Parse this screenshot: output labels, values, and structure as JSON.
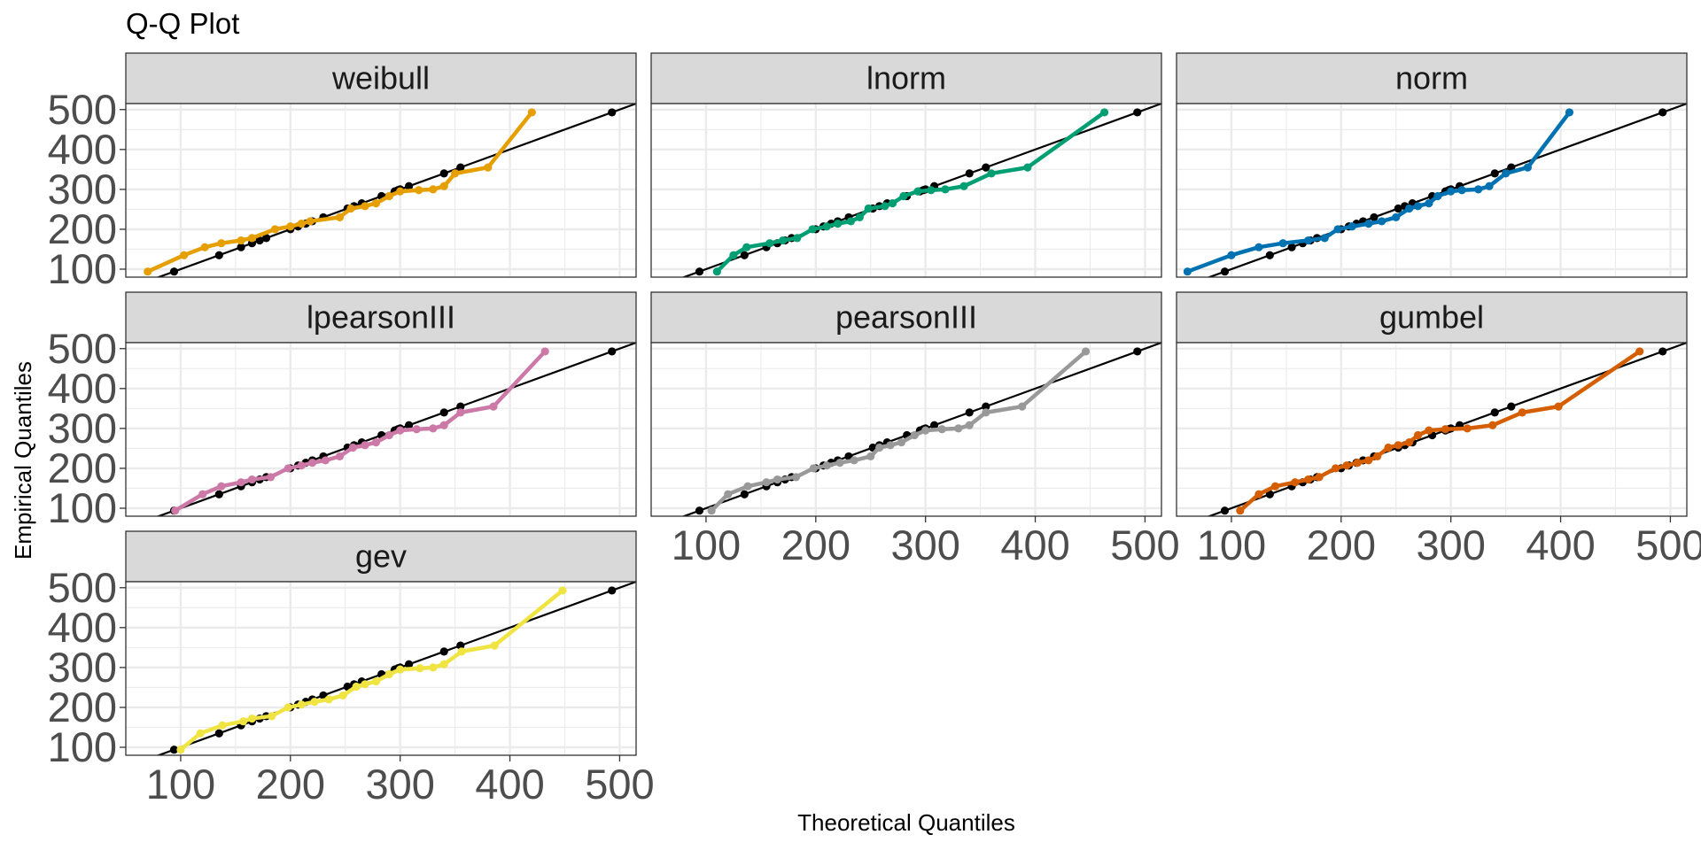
{
  "chart_data": {
    "type": "scatter",
    "title": "Q-Q Plot",
    "xlabel": "Theoretical Quantiles",
    "ylabel": "Empirical Quantiles",
    "xlim": [
      50,
      515
    ],
    "ylim": [
      80,
      515
    ],
    "x_ticks": [
      100,
      200,
      300,
      400,
      500
    ],
    "y_ticks": [
      100,
      200,
      300,
      400,
      500
    ],
    "grid": true,
    "reference_line": "y = x",
    "observed": [
      94,
      135,
      155,
      165,
      172,
      178,
      200,
      207,
      214,
      220,
      230,
      252,
      258,
      265,
      283,
      295,
      298,
      300,
      308,
      340,
      355,
      493
    ],
    "panels": [
      {
        "name": "weibull",
        "color": "#E69F00",
        "theoretical": [
          70,
          103,
          122,
          137,
          155,
          165,
          186,
          200,
          210,
          218,
          245,
          255,
          268,
          278,
          290,
          300,
          317,
          330,
          340,
          350,
          380,
          420
        ]
      },
      {
        "name": "lnorm",
        "color": "#009E73",
        "theoretical": [
          110,
          125,
          137,
          158,
          170,
          183,
          197,
          210,
          220,
          232,
          240,
          248,
          263,
          270,
          280,
          293,
          305,
          318,
          335,
          360,
          393,
          463
        ]
      },
      {
        "name": "norm",
        "color": "#0072B2",
        "theoretical": [
          60,
          100,
          125,
          147,
          170,
          185,
          197,
          210,
          225,
          237,
          250,
          262,
          270,
          280,
          288,
          300,
          310,
          325,
          335,
          350,
          370,
          408
        ]
      },
      {
        "name": "lpearsonIII",
        "color": "#CC79A7",
        "theoretical": [
          95,
          120,
          137,
          155,
          165,
          182,
          198,
          210,
          220,
          232,
          245,
          257,
          268,
          278,
          290,
          300,
          315,
          330,
          340,
          355,
          385,
          432
        ]
      },
      {
        "name": "pearsonIII",
        "color": "#999999",
        "theoretical": [
          105,
          120,
          138,
          155,
          165,
          182,
          198,
          210,
          222,
          235,
          250,
          258,
          268,
          278,
          290,
          300,
          315,
          330,
          340,
          355,
          388,
          446
        ]
      },
      {
        "name": "gumbel",
        "color": "#D55E00",
        "theoretical": [
          108,
          125,
          140,
          158,
          170,
          180,
          195,
          205,
          215,
          225,
          233,
          243,
          252,
          262,
          270,
          280,
          295,
          315,
          338,
          365,
          398,
          472
        ]
      },
      {
        "name": "gev",
        "color": "#F0E442",
        "theoretical": [
          100,
          118,
          138,
          157,
          165,
          183,
          198,
          210,
          222,
          235,
          248,
          260,
          268,
          278,
          290,
          300,
          318,
          330,
          340,
          356,
          386,
          448
        ]
      }
    ]
  }
}
